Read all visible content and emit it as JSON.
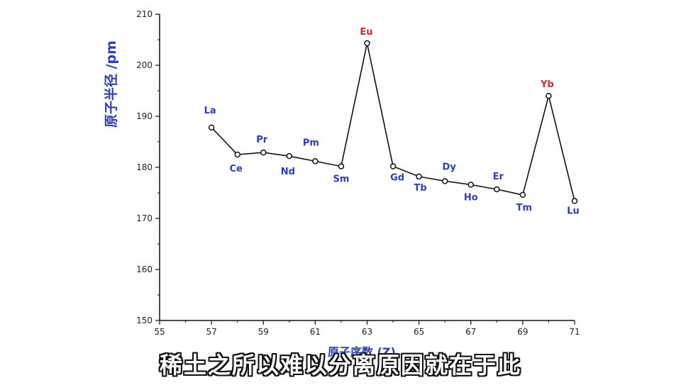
{
  "chart_data": {
    "type": "line",
    "ylabel": "原子半径 /pm",
    "xlabel": "原子序数 (Z)",
    "xlim": [
      55,
      71
    ],
    "ylim": [
      150,
      210
    ],
    "xticks": [
      55,
      57,
      59,
      61,
      63,
      65,
      67,
      69,
      71
    ],
    "yticks": [
      150,
      160,
      170,
      180,
      190,
      200,
      210
    ],
    "grid": false,
    "series": [
      {
        "points": [
          {
            "x": 57,
            "y": 187.8,
            "label": "La"
          },
          {
            "x": 58,
            "y": 182.5,
            "label": "Ce"
          },
          {
            "x": 59,
            "y": 182.9,
            "label": "Pr"
          },
          {
            "x": 60,
            "y": 182.2,
            "label": "Nd"
          },
          {
            "x": 61,
            "y": 181.2,
            "label": "Pm"
          },
          {
            "x": 62,
            "y": 180.2,
            "label": "Sm"
          },
          {
            "x": 63,
            "y": 204.3,
            "label": "Eu"
          },
          {
            "x": 64,
            "y": 180.2,
            "label": "Gd"
          },
          {
            "x": 65,
            "y": 178.2,
            "label": "Tb"
          },
          {
            "x": 66,
            "y": 177.3,
            "label": "Dy"
          },
          {
            "x": 67,
            "y": 176.6,
            "label": "Ho"
          },
          {
            "x": 68,
            "y": 175.7,
            "label": "Er"
          },
          {
            "x": 69,
            "y": 174.6,
            "label": "Tm"
          },
          {
            "x": 70,
            "y": 194.0,
            "label": "Yb"
          },
          {
            "x": 71,
            "y": 173.4,
            "label": "Lu"
          }
        ]
      }
    ],
    "colors": {
      "line": "#111111",
      "axis": "#111111",
      "label_default": "#2a3fb5",
      "label_highlight": "#d42a2a"
    }
  },
  "subtitle": "稀土之所以难以分离原因就在于此"
}
